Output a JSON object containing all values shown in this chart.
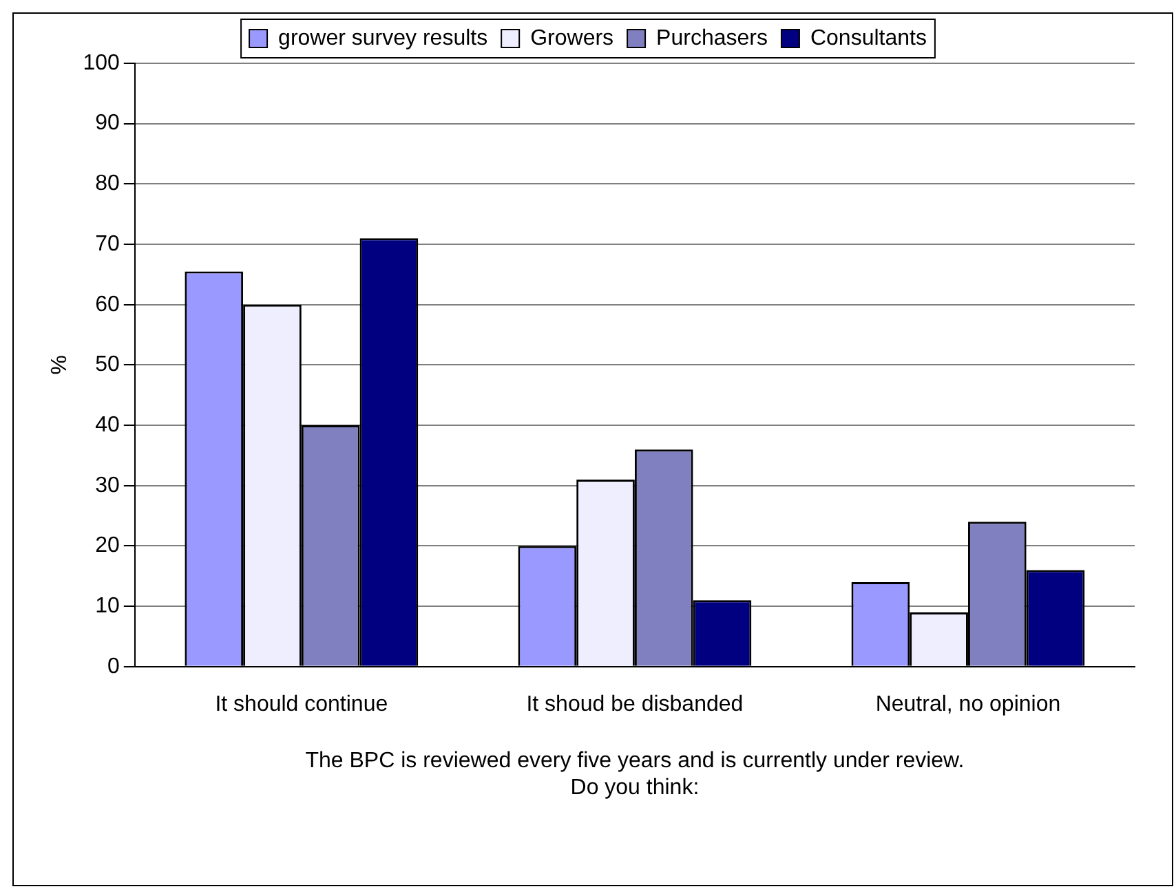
{
  "chart_data": {
    "type": "bar",
    "xlabel": "The BPC is reviewed every five years and is currently under review.\nDo you think:",
    "ylabel": "%",
    "categories": [
      "It should continue",
      "It shoud be disbanded",
      "Neutral, no opinion"
    ],
    "series": [
      {
        "name": "grower survey results",
        "color": "#9999ff",
        "values": [
          65.5,
          20,
          14
        ]
      },
      {
        "name": "Growers",
        "color": "#eeeeff",
        "values": [
          60,
          31,
          9
        ]
      },
      {
        "name": "Purchasers",
        "color": "#8080c0",
        "values": [
          40,
          36,
          24
        ]
      },
      {
        "name": "Consultants",
        "color": "#000080",
        "values": [
          71,
          11,
          16
        ]
      }
    ],
    "ylim": [
      0,
      100
    ],
    "yticks": [
      0,
      10,
      20,
      30,
      40,
      50,
      60,
      70,
      80,
      90,
      100
    ],
    "grid": "y",
    "legend": "top"
  }
}
